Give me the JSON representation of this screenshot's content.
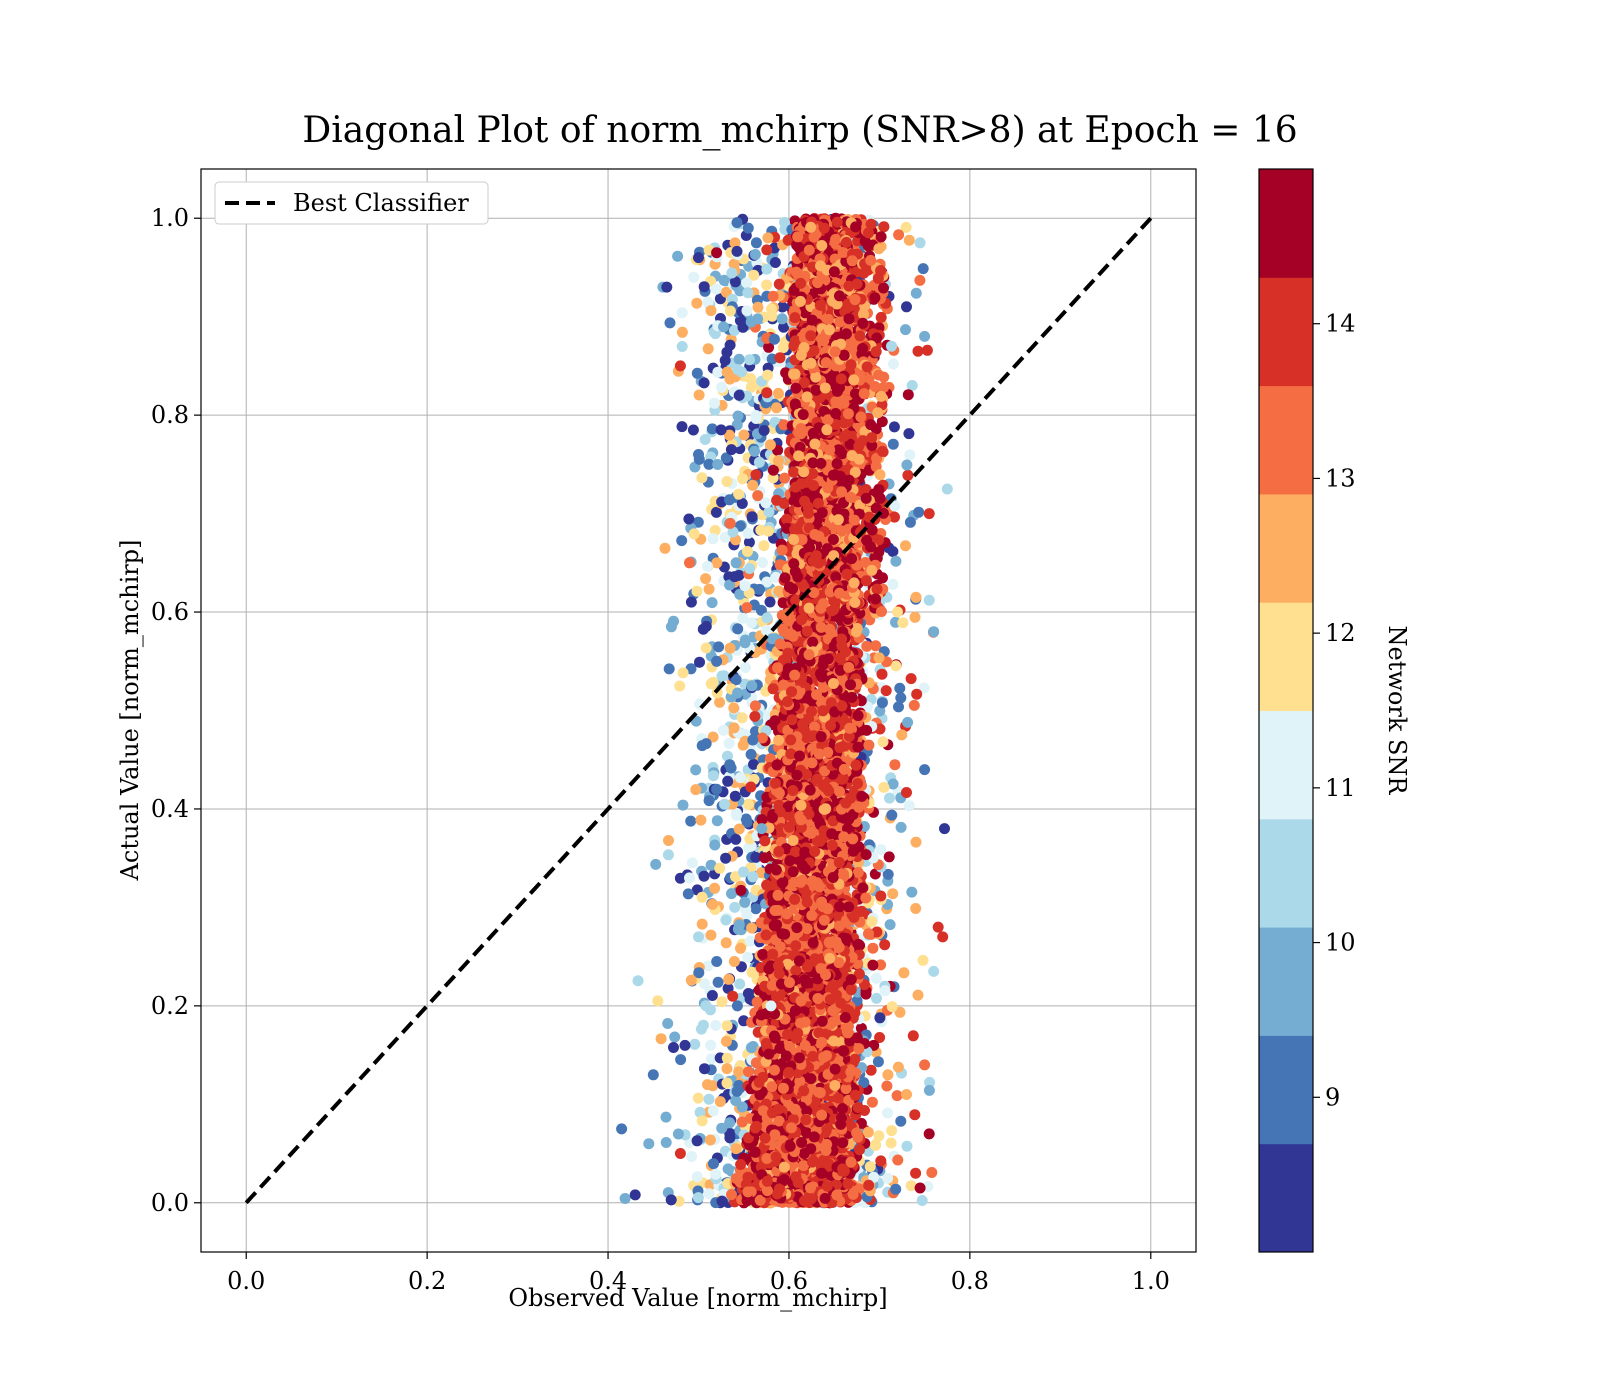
{
  "chart_data": {
    "type": "scatter",
    "title": "Diagonal Plot of norm_mchirp (SNR>8) at Epoch = 16",
    "xlabel": "Observed Value [norm_mchirp]",
    "ylabel": "Actual Value [norm_mchirp]",
    "xlim": [
      -0.05,
      1.05
    ],
    "ylim": [
      -0.05,
      1.05
    ],
    "xticks": [
      "0.0",
      "0.2",
      "0.4",
      "0.6",
      "0.8",
      "1.0"
    ],
    "yticks": [
      "0.0",
      "0.2",
      "0.4",
      "0.6",
      "0.8",
      "1.0"
    ],
    "grid": true,
    "legend": {
      "placement": "top-left",
      "entries": [
        "Best Classifier"
      ]
    },
    "reference_line": {
      "name": "Best Classifier",
      "x": [
        0.0,
        1.0
      ],
      "y": [
        0.0,
        1.0
      ],
      "style": "dashed",
      "color": "#000000"
    },
    "colorbar": {
      "label": "Network SNR",
      "range": [
        8,
        15
      ],
      "ticks": [
        "9",
        "10",
        "11",
        "12",
        "13",
        "14"
      ],
      "tick_values": [
        9,
        10,
        11,
        12,
        13,
        14
      ],
      "levels": [
        8.0,
        8.7,
        9.4,
        10.1,
        10.8,
        11.5,
        12.2,
        12.9,
        13.6,
        14.3,
        15.0
      ],
      "colors": [
        "#313695",
        "#4575b4",
        "#74add1",
        "#abd9e9",
        "#e0f3f8",
        "#fee090",
        "#fdae61",
        "#f46d43",
        "#d73027",
        "#a50026"
      ]
    },
    "scatter_summary": {
      "n_points_approx": 20000,
      "x_range": [
        0.42,
        0.78
      ],
      "y_range": [
        0.0,
        1.0
      ],
      "core_x_center": 0.645,
      "note_high_snr_core": "dense high-SNR points concentrated near x 0.6-0.7",
      "note_low_snr": "low-SNR points spread toward x 0.45-0.6, mostly y < 0.5"
    },
    "points": [
      [
        0.415,
        0.075,
        9
      ],
      [
        0.43,
        0.008,
        8.5
      ],
      [
        0.445,
        0.06,
        9.5
      ],
      [
        0.45,
        0.13,
        9
      ],
      [
        0.455,
        0.205,
        12
      ],
      [
        0.47,
        0.585,
        9.5
      ],
      [
        0.465,
        0.93,
        8.3
      ],
      [
        0.48,
        0.85,
        14
      ],
      [
        0.5,
        0.96,
        8.5
      ],
      [
        0.52,
        0.965,
        14.5
      ],
      [
        0.555,
        0.99,
        9
      ],
      [
        0.585,
        0.955,
        8.3
      ],
      [
        0.5,
        0.76,
        8.8
      ],
      [
        0.49,
        0.65,
        13
      ],
      [
        0.52,
        0.55,
        9
      ],
      [
        0.535,
        0.69,
        13.5
      ],
      [
        0.545,
        0.82,
        8.3
      ],
      [
        0.73,
        0.91,
        8.3
      ],
      [
        0.75,
        0.88,
        9.5
      ],
      [
        0.745,
        0.975,
        10.5
      ],
      [
        0.775,
        0.725,
        10.3
      ],
      [
        0.755,
        0.7,
        14
      ],
      [
        0.76,
        0.58,
        9.5
      ],
      [
        0.755,
        0.612,
        10.5
      ],
      [
        0.75,
        0.44,
        9
      ],
      [
        0.772,
        0.38,
        8.3
      ],
      [
        0.77,
        0.27,
        14
      ],
      [
        0.765,
        0.28,
        13.7
      ],
      [
        0.76,
        0.235,
        10.5
      ],
      [
        0.755,
        0.07,
        14.5
      ],
      [
        0.75,
        0.14,
        13
      ],
      [
        0.745,
        0.015,
        14.5
      ],
      [
        0.74,
        0.03,
        14
      ],
      [
        0.73,
        0.11,
        12.5
      ],
      [
        0.72,
        0.6,
        12
      ],
      [
        0.52,
        0.42,
        9
      ],
      [
        0.53,
        0.35,
        8.5
      ],
      [
        0.5,
        0.27,
        10.5
      ],
      [
        0.49,
        0.33,
        11
      ],
      [
        0.51,
        0.12,
        12.5
      ],
      [
        0.48,
        0.05,
        14
      ],
      [
        0.56,
        0.47,
        9.3
      ],
      [
        0.54,
        0.3,
        10.3
      ],
      [
        0.57,
        0.38,
        9.8
      ],
      [
        0.58,
        0.2,
        11.3
      ]
    ]
  }
}
